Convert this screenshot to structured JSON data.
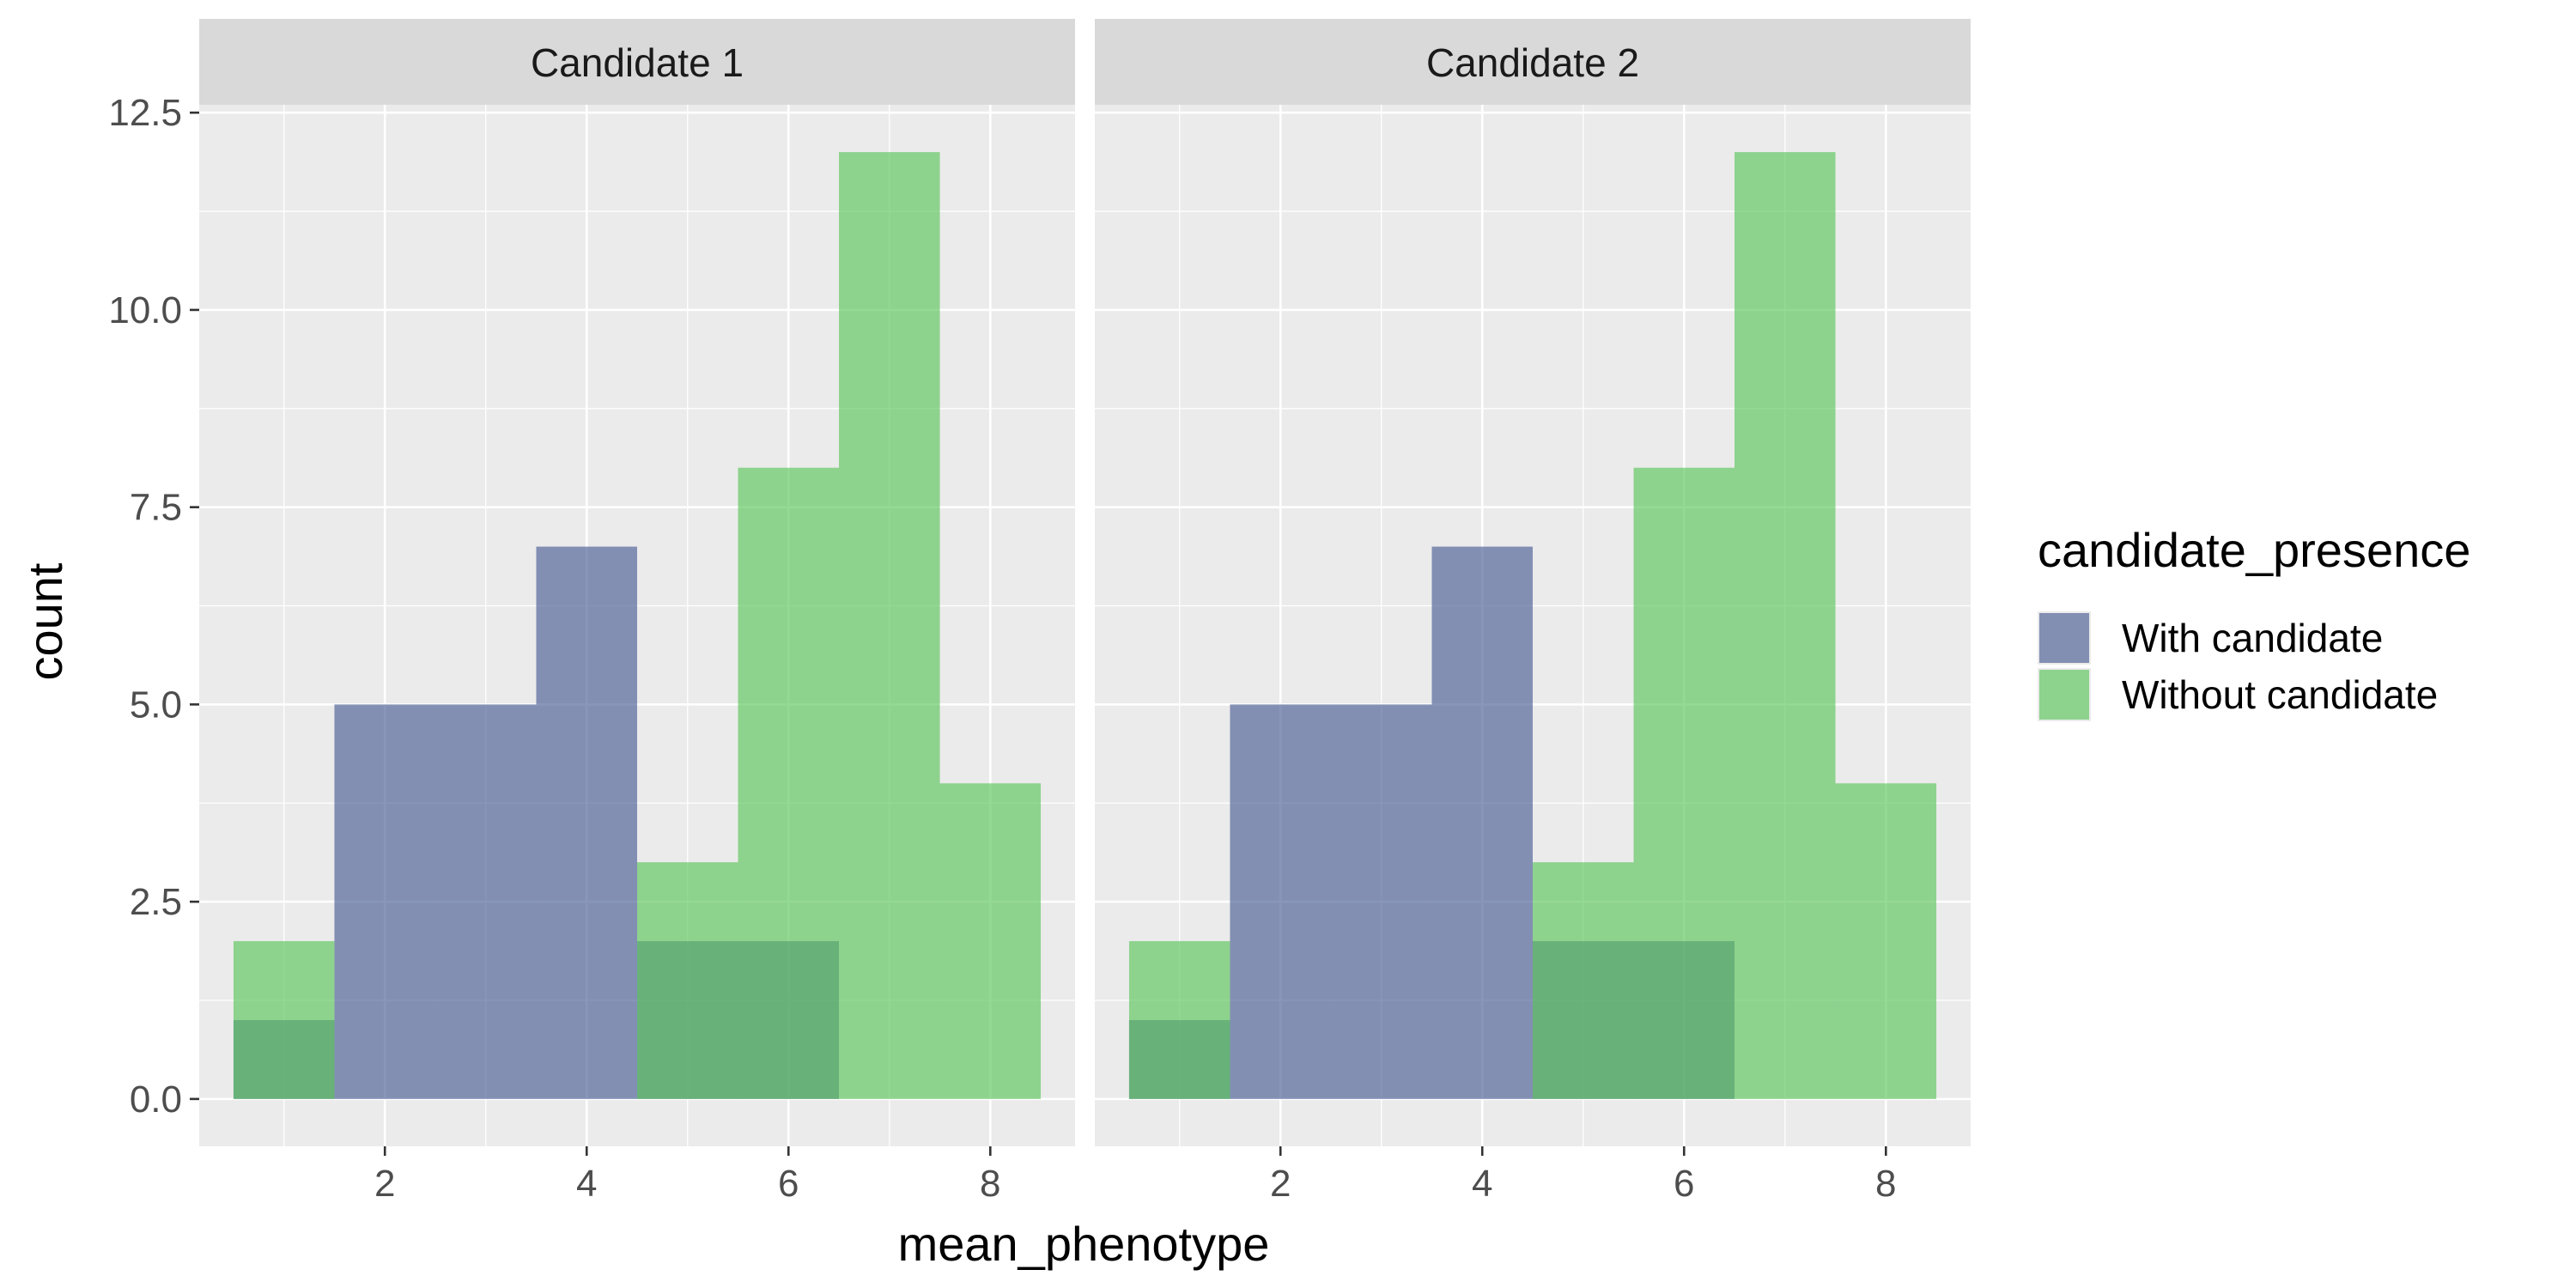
{
  "chart_data": {
    "type": "bar",
    "chart_kind": "histogram",
    "bin_width": 1,
    "x_range": [
      0.16,
      8.84
    ],
    "x_ticks": [
      2,
      4,
      6,
      8
    ],
    "x_tick_labels": [
      "2",
      "4",
      "6",
      "8"
    ],
    "ylim": [
      -0.6,
      12.6
    ],
    "y_ticks": [
      0,
      2.5,
      5,
      7.5,
      10,
      12.5
    ],
    "y_tick_labels": [
      "0.0",
      "2.5",
      "5.0",
      "7.5",
      "10.0",
      "12.5"
    ],
    "xlabel": "mean_phenotype",
    "ylabel": "count",
    "grid": true,
    "legend": {
      "title": "candidate_presence",
      "placement": "right",
      "entries": [
        {
          "label": "With candidate",
          "color": "#4a5d95"
        },
        {
          "label": "Without candidate",
          "color": "#5bc55a"
        }
      ]
    },
    "panels": [
      {
        "strip_label": "Candidate 1",
        "series": [
          {
            "name": "With candidate",
            "color": "#4a5d95",
            "x": [
              1,
              2,
              3,
              4,
              5,
              6,
              7,
              8
            ],
            "values": [
              1,
              5,
              5,
              7,
              2,
              2,
              0,
              0
            ]
          },
          {
            "name": "Without candidate",
            "color": "#5bc55a",
            "x": [
              1,
              2,
              3,
              4,
              5,
              6,
              7,
              8
            ],
            "values": [
              2,
              0,
              0,
              0,
              3,
              8,
              12,
              4
            ]
          }
        ]
      },
      {
        "strip_label": "Candidate 2",
        "series": [
          {
            "name": "With candidate",
            "color": "#4a5d95",
            "x": [
              1,
              2,
              3,
              4,
              5,
              6,
              7,
              8
            ],
            "values": [
              1,
              5,
              5,
              7,
              2,
              2,
              0,
              0
            ]
          },
          {
            "name": "Without candidate",
            "color": "#5bc55a",
            "x": [
              1,
              2,
              3,
              4,
              5,
              6,
              7,
              8
            ],
            "values": [
              2,
              0,
              0,
              0,
              3,
              8,
              12,
              4
            ]
          }
        ]
      }
    ]
  },
  "colors": {
    "panel_background": "#ebebeb",
    "strip_background": "#d9d9d9",
    "grid_major": "#ffffff",
    "fill_opacity": 0.65
  }
}
